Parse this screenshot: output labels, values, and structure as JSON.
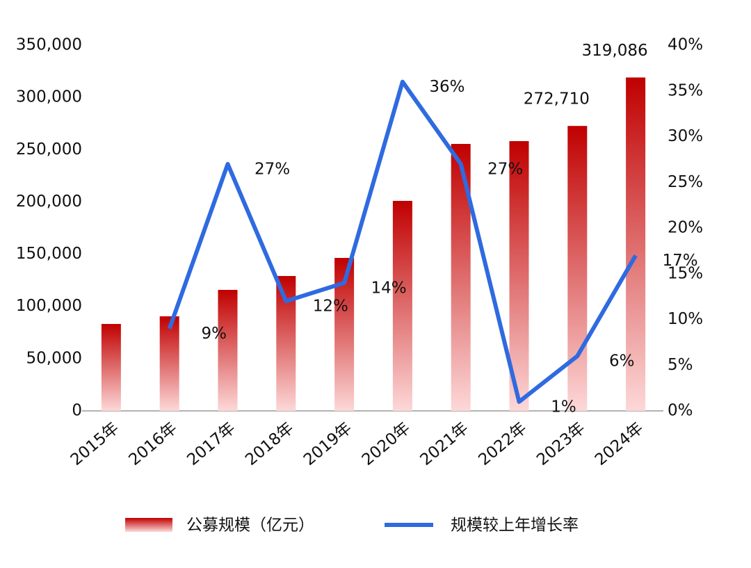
{
  "chart_data": {
    "type": "bar-line",
    "categories": [
      "2015年",
      "2016年",
      "2017年",
      "2018年",
      "2019年",
      "2020年",
      "2021年",
      "2022年",
      "2023年",
      "2024年"
    ],
    "series": [
      {
        "name": "公募规模（亿元）",
        "color": "#c00000",
        "type": "bar",
        "values": [
          83200,
          90500,
          115800,
          129100,
          146400,
          201000,
          255500,
          258200,
          272710,
          319086
        ],
        "value_labels": [
          null,
          null,
          null,
          null,
          null,
          null,
          null,
          null,
          "272,710",
          "319,086"
        ]
      },
      {
        "name": "规模较上年增长率",
        "color": "#2f6ae0",
        "type": "line",
        "axis": "y2",
        "values": [
          null,
          9,
          27,
          12,
          14,
          36,
          27,
          1,
          6,
          17
        ],
        "value_labels": [
          null,
          "9%",
          "27%",
          "12%",
          "14%",
          "36%",
          "27%",
          "1%",
          "6%",
          "17%"
        ]
      }
    ],
    "ylim": [
      0,
      350000
    ],
    "yticks": [
      0,
      {
        "value": 50000,
        "label": "50,000"
      },
      {
        "value": 100000,
        "label": "100,000"
      },
      {
        "value": 150000,
        "label": "150,000"
      },
      {
        "value": 200000,
        "label": "200,000"
      },
      {
        "value": 250000,
        "label": "250,000"
      },
      {
        "value": 300000,
        "label": "300,000"
      },
      {
        "value": 350000,
        "label": "350,000"
      }
    ],
    "y2lim": [
      0,
      40
    ],
    "y2ticks": [
      {
        "value": 0,
        "label": "0%"
      },
      {
        "value": 5,
        "label": "5%"
      },
      {
        "value": 10,
        "label": "10%"
      },
      {
        "value": 15,
        "label": "15%"
      },
      {
        "value": 20,
        "label": "20%"
      },
      {
        "value": 25,
        "label": "25%"
      },
      {
        "value": 30,
        "label": "30%"
      },
      {
        "value": 35,
        "label": "35%"
      },
      {
        "value": 40,
        "label": "40%"
      }
    ],
    "legend": "bottom"
  }
}
